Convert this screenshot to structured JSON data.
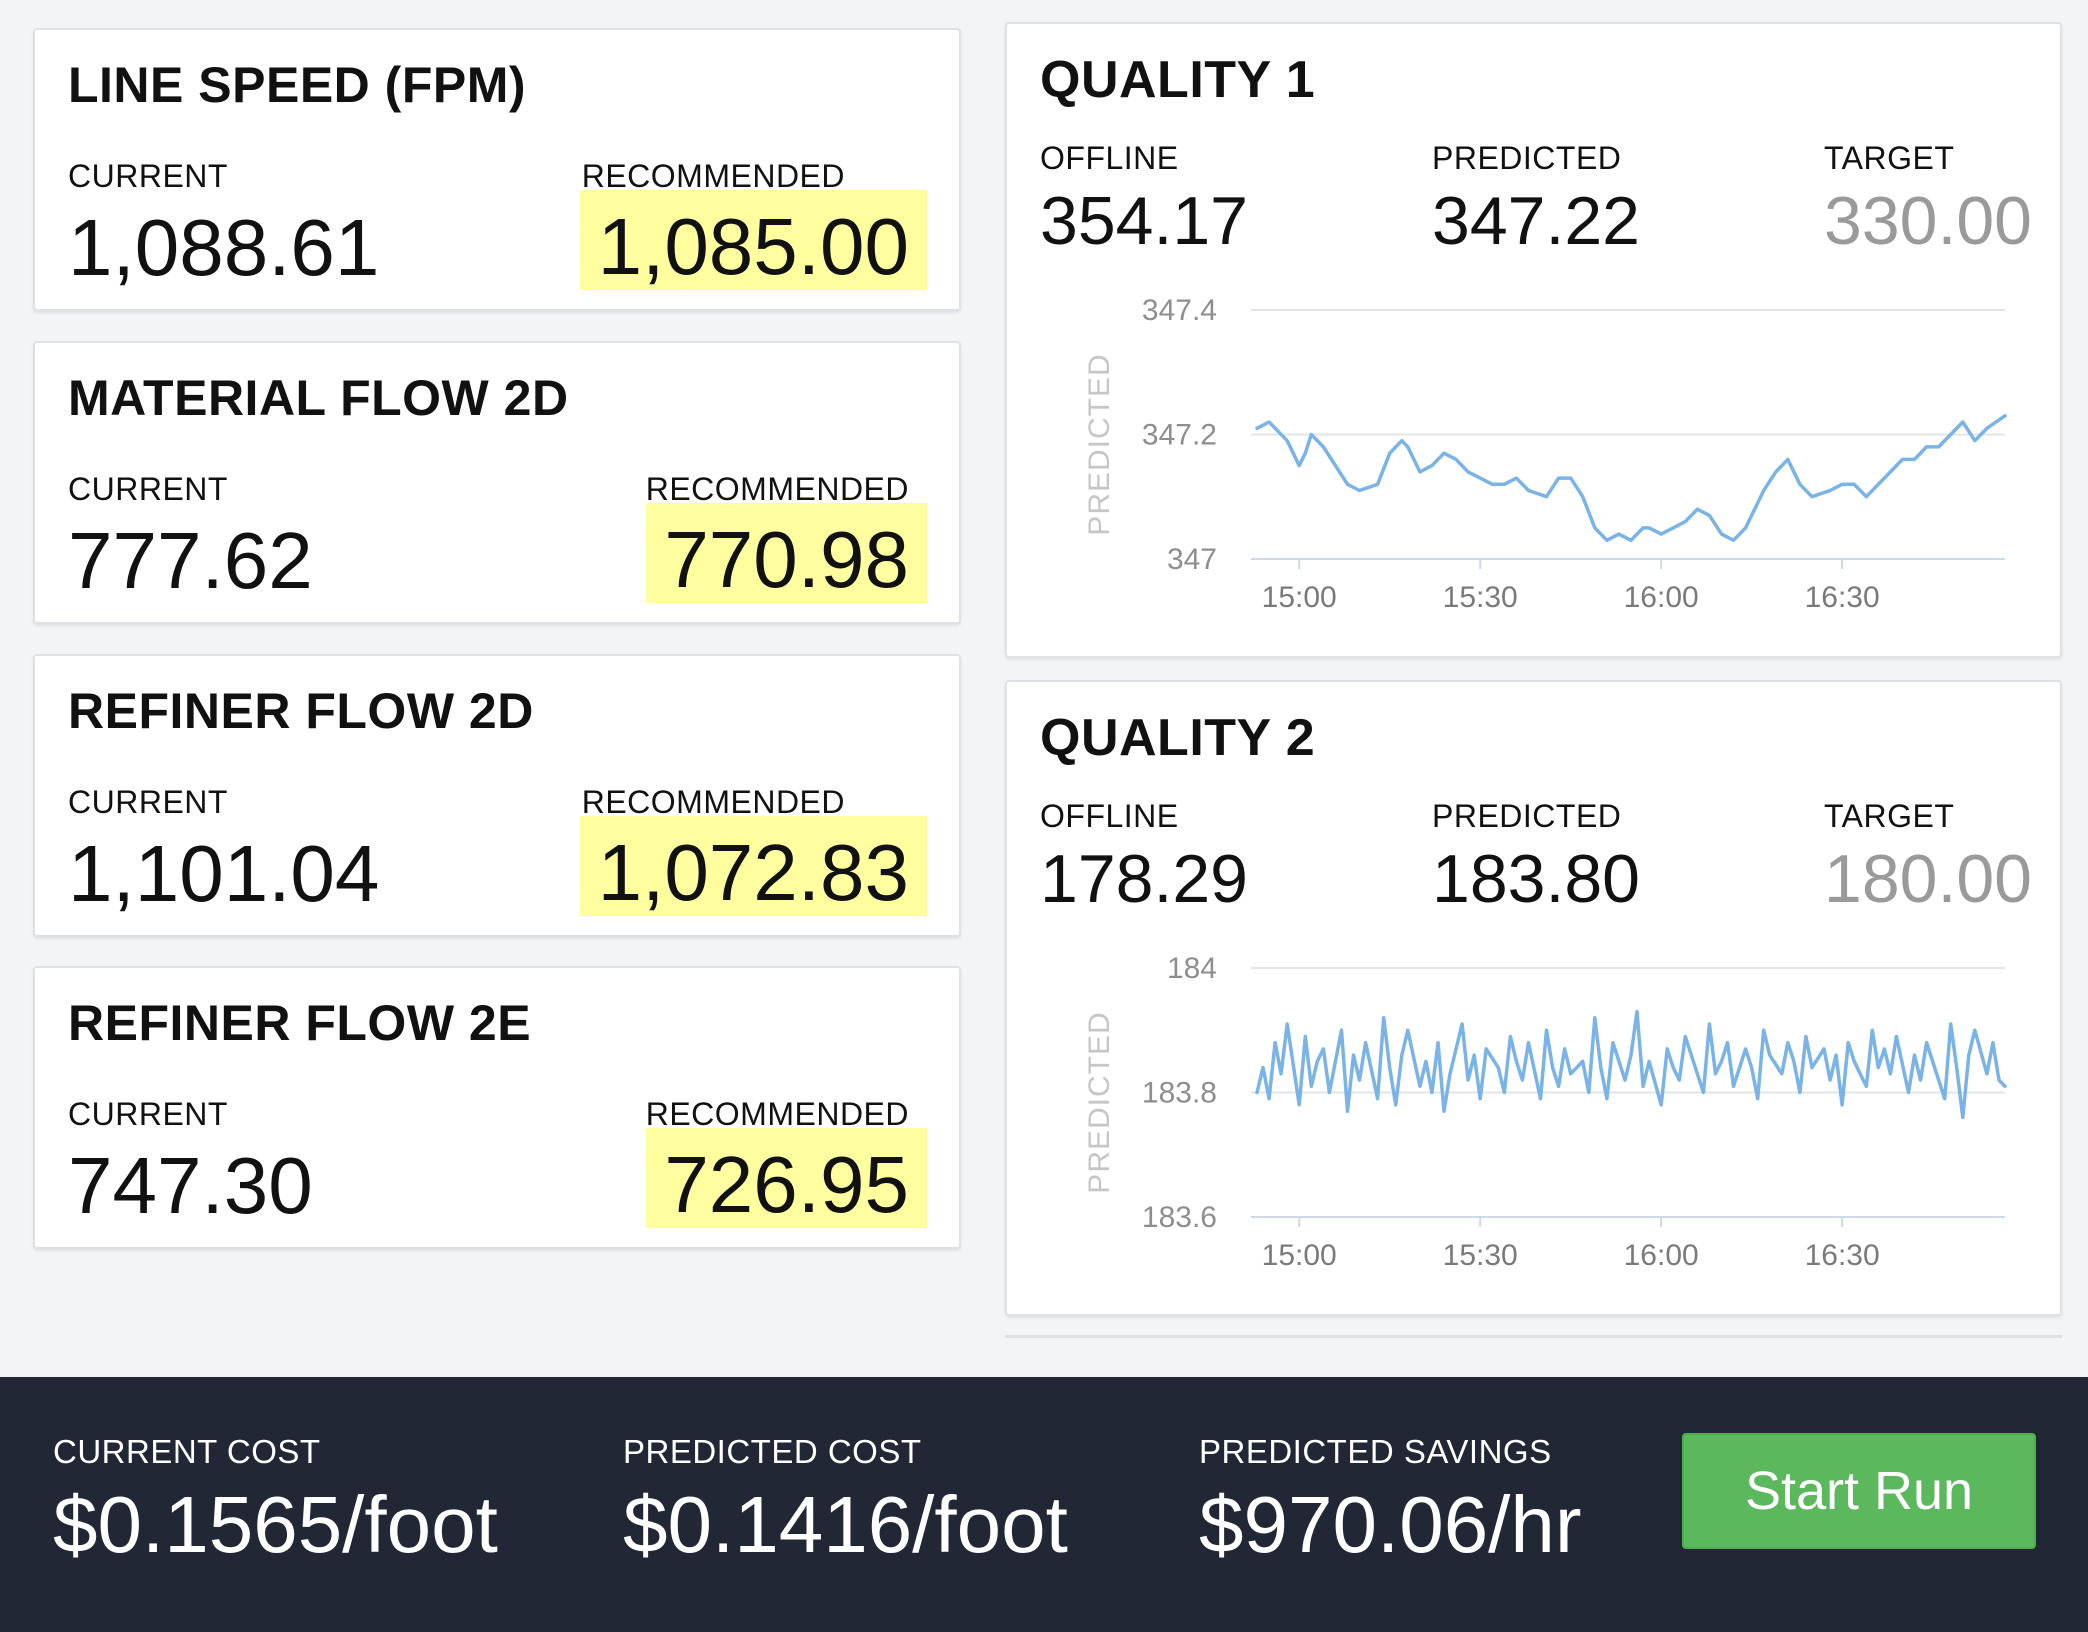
{
  "controls": [
    {
      "title": "LINE SPEED (FPM)",
      "current_label": "CURRENT",
      "current": "1,088.61",
      "recommended_label": "RECOMMENDED",
      "recommended": "1,085.00"
    },
    {
      "title": "MATERIAL FLOW 2D",
      "current_label": "CURRENT",
      "current": "777.62",
      "recommended_label": "RECOMMENDED",
      "recommended": "770.98"
    },
    {
      "title": "REFINER FLOW 2D",
      "current_label": "CURRENT",
      "current": "1,101.04",
      "recommended_label": "RECOMMENDED",
      "recommended": "1,072.83"
    },
    {
      "title": "REFINER FLOW 2E",
      "current_label": "CURRENT",
      "current": "747.30",
      "recommended_label": "RECOMMENDED",
      "recommended": "726.95"
    }
  ],
  "quality": [
    {
      "title": "QUALITY 1",
      "offline_label": "OFFLINE",
      "offline": "354.17",
      "predicted_label": "PREDICTED",
      "predicted": "347.22",
      "target_label": "TARGET",
      "target": "330.00"
    },
    {
      "title": "QUALITY 2",
      "offline_label": "OFFLINE",
      "offline": "178.29",
      "predicted_label": "PREDICTED",
      "predicted": "183.80",
      "target_label": "TARGET",
      "target": "180.00"
    }
  ],
  "colors": {
    "line": "#7ab3e8",
    "highlight": "#ffff9f",
    "footer_bg": "#222735",
    "button": "#5cb85c"
  },
  "chart_data": [
    {
      "type": "line",
      "ylabel": "PREDICTED",
      "x_ticks": [
        "15:00",
        "15:30",
        "16:00",
        "16:30"
      ],
      "y_ticks": [
        "347.4",
        "347.2",
        "347"
      ],
      "ylim": [
        347.0,
        347.4
      ],
      "x_range": [
        "14:53",
        "16:57"
      ],
      "series": [
        {
          "x": [
            "14:53",
            "14:55",
            "14:58",
            "15:00",
            "15:01",
            "15:02",
            "15:04",
            "15:06",
            "15:08",
            "15:10",
            "15:13",
            "15:15",
            "15:17",
            "15:18",
            "15:20",
            "15:22",
            "15:24",
            "15:26",
            "15:28",
            "15:30",
            "15:32",
            "15:34",
            "15:36",
            "15:38",
            "15:41",
            "15:43",
            "15:45",
            "15:47",
            "15:49",
            "15:51",
            "15:53",
            "15:55",
            "15:56",
            "15:57",
            "15:58",
            "16:00",
            "16:02",
            "16:04",
            "16:06",
            "16:08",
            "16:10",
            "16:12",
            "16:14",
            "16:15",
            "16:16",
            "16:17",
            "16:19",
            "16:21",
            "16:23",
            "16:25",
            "16:28",
            "16:30",
            "16:32",
            "16:34",
            "16:36",
            "16:38",
            "16:40",
            "16:42",
            "16:44",
            "16:46",
            "16:48",
            "16:50",
            "16:52",
            "16:54",
            "16:57"
          ],
          "values": [
            347.21,
            347.22,
            347.19,
            347.15,
            347.17,
            347.2,
            347.18,
            347.15,
            347.12,
            347.11,
            347.12,
            347.17,
            347.19,
            347.18,
            347.14,
            347.15,
            347.17,
            347.16,
            347.14,
            347.13,
            347.12,
            347.12,
            347.13,
            347.11,
            347.1,
            347.13,
            347.13,
            347.1,
            347.05,
            347.03,
            347.04,
            347.03,
            347.04,
            347.05,
            347.05,
            347.04,
            347.05,
            347.06,
            347.08,
            347.07,
            347.04,
            347.03,
            347.05,
            347.07,
            347.09,
            347.11,
            347.14,
            347.16,
            347.12,
            347.1,
            347.11,
            347.12,
            347.12,
            347.1,
            347.12,
            347.14,
            347.16,
            347.16,
            347.18,
            347.18,
            347.2,
            347.22,
            347.19,
            347.21,
            347.23
          ]
        }
      ]
    },
    {
      "type": "line",
      "ylabel": "PREDICTED",
      "x_ticks": [
        "15:00",
        "15:30",
        "16:00",
        "16:30"
      ],
      "y_ticks": [
        "184",
        "183.8",
        "183.6"
      ],
      "ylim": [
        183.6,
        184.0
      ],
      "x_range": [
        "14:53",
        "16:57"
      ],
      "series": [
        {
          "x": [
            "14:53",
            "14:54",
            "14:55",
            "14:56",
            "14:57",
            "14:58",
            "15:00",
            "15:01",
            "15:02",
            "15:03",
            "15:04",
            "15:05",
            "15:07",
            "15:08",
            "15:09",
            "15:10",
            "15:11",
            "15:13",
            "15:14",
            "15:15",
            "15:16",
            "15:17",
            "15:18",
            "15:20",
            "15:21",
            "15:22",
            "15:23",
            "15:24",
            "15:25",
            "15:27",
            "15:28",
            "15:29",
            "15:30",
            "15:31",
            "15:33",
            "15:34",
            "15:35",
            "15:36",
            "15:37",
            "15:38",
            "15:40",
            "15:41",
            "15:42",
            "15:43",
            "15:44",
            "15:45",
            "15:47",
            "15:48",
            "15:49",
            "15:50",
            "15:51",
            "15:52",
            "15:54",
            "15:55",
            "15:56",
            "15:57",
            "15:58",
            "16:00",
            "16:01",
            "16:02",
            "16:03",
            "16:04",
            "16:05",
            "16:07",
            "16:08",
            "16:09",
            "16:10",
            "16:11",
            "16:12",
            "16:14",
            "16:15",
            "16:16",
            "16:17",
            "16:18",
            "16:20",
            "16:21",
            "16:22",
            "16:23",
            "16:24",
            "16:25",
            "16:27",
            "16:28",
            "16:29",
            "16:30",
            "16:31",
            "16:32",
            "16:34",
            "16:35",
            "16:36",
            "16:37",
            "16:38",
            "16:39",
            "16:41",
            "16:42",
            "16:43",
            "16:44",
            "16:45",
            "16:47",
            "16:48",
            "16:49",
            "16:50",
            "16:51",
            "16:52",
            "16:54",
            "16:55",
            "16:56",
            "16:57"
          ],
          "values": [
            183.8,
            183.84,
            183.79,
            183.88,
            183.83,
            183.91,
            183.78,
            183.89,
            183.81,
            183.85,
            183.87,
            183.8,
            183.9,
            183.77,
            183.86,
            183.82,
            183.88,
            183.79,
            183.92,
            183.84,
            183.78,
            183.86,
            183.9,
            183.81,
            183.85,
            183.8,
            183.88,
            183.77,
            183.83,
            183.91,
            183.82,
            183.86,
            183.79,
            183.87,
            183.84,
            183.8,
            183.89,
            183.85,
            183.82,
            183.88,
            183.79,
            183.9,
            183.84,
            183.81,
            183.87,
            183.83,
            183.85,
            183.8,
            183.92,
            183.84,
            183.79,
            183.88,
            183.82,
            183.86,
            183.93,
            183.81,
            183.85,
            183.78,
            183.87,
            183.84,
            183.82,
            183.89,
            183.86,
            183.8,
            183.91,
            183.83,
            183.85,
            183.88,
            183.81,
            183.87,
            183.84,
            183.79,
            183.9,
            183.86,
            183.83,
            183.88,
            183.85,
            183.8,
            183.89,
            183.84,
            183.87,
            183.82,
            183.86,
            183.78,
            183.88,
            183.85,
            183.81,
            183.9,
            183.84,
            183.87,
            183.83,
            183.89,
            183.8,
            183.86,
            183.82,
            183.88,
            183.85,
            183.79,
            183.91,
            183.84,
            183.76,
            183.86,
            183.9,
            183.83,
            183.88,
            183.82,
            183.81
          ]
        }
      ]
    }
  ],
  "footer": {
    "current_cost_label": "CURRENT COST",
    "current_cost": "$0.1565/foot",
    "predicted_cost_label": "PREDICTED COST",
    "predicted_cost": "$0.1416/foot",
    "predicted_savings_label": "PREDICTED SAVINGS",
    "predicted_savings": "$970.06/hr",
    "start_run_label": "Start Run"
  }
}
